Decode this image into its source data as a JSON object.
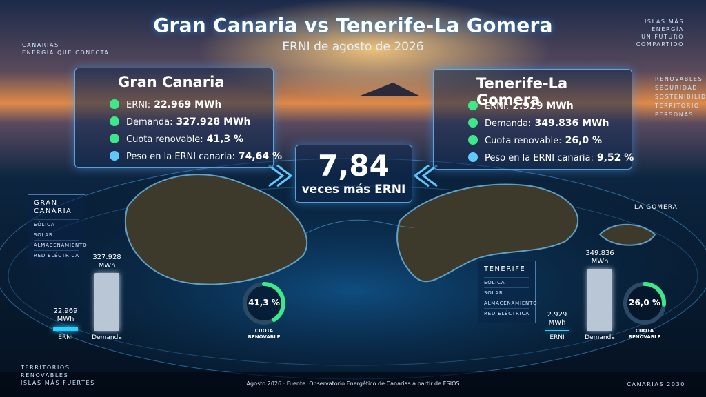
{
  "header": {
    "title": "Gran Canaria vs Tenerife-La Gomera",
    "subtitle": "ERNI de agosto de 2026"
  },
  "brand": "CANARIAS\nENERGÍA QUE CONECTA",
  "top_right": "ISLAS MÁS\nENERGÍA\nUN FUTURO\nCOMPARTIDO",
  "right_menu": "RENOVABLES\nSEGURIDAD\nSOSTENIBILIDAD\nTERRITORIO\nPERSONAS",
  "bottom_left": "TERRITORIOS\nRENOVABLES\nISLAS MÁS FUERTES",
  "bottom_right": "CANARIAS 2030",
  "footer": "Agosto 2026 · Fuente: Observatorio Energético de Canarias a partir de ESIOS",
  "comparison": {
    "value": "7,84",
    "label": "veces más ERNI"
  },
  "la_gomera": "LA GOMERA",
  "islands": [
    {
      "name": "Gran Canaria",
      "stats": [
        {
          "label": "ERNI:",
          "value": "22.969 MWh"
        },
        {
          "label": "Demanda:",
          "value": "327.928 MWh"
        },
        {
          "label": "Cuota renovable:",
          "value": "41,3 %"
        },
        {
          "label": "Peso en la ERNI canaria:",
          "value": "74,64 %"
        }
      ],
      "panel": {
        "title": "GRAN\nCANARIA",
        "items": [
          "EÓLICA",
          "SOLAR",
          "ALMACENAMIENTO",
          "RED ELÉCTRICA"
        ]
      },
      "bars": {
        "categories": [
          "ERNI",
          "Demanda"
        ],
        "values": [
          22969,
          327928
        ],
        "value_labels": [
          "22.969\nMWh",
          "327.928\nMWh"
        ],
        "colors": [
          "#2ad0ff",
          "#b8c6d6"
        ]
      },
      "donut": {
        "value": 41.3,
        "value_label": "41,3 %",
        "caption": "CUOTA\nRENOVABLE",
        "color": "#3ee88a"
      }
    },
    {
      "name": "Tenerife-La Gomera",
      "stats": [
        {
          "label": "ERNI:",
          "value": "2.929 MWh"
        },
        {
          "label": "Demanda:",
          "value": "349.836 MWh"
        },
        {
          "label": "Cuota renovable:",
          "value": "26,0 %"
        },
        {
          "label": "Peso en la ERNI canaria:",
          "value": "9,52 %"
        }
      ],
      "panel": {
        "title": "TENERIFE",
        "items": [
          "EÓLICA",
          "SOLAR",
          "ALMACENAMIENTO",
          "RED ELÉCTRICA"
        ]
      },
      "bars": {
        "categories": [
          "ERNI",
          "Demanda"
        ],
        "values": [
          2929,
          349836
        ],
        "value_labels": [
          "2.929\nMWh",
          "349.836\nMWh"
        ],
        "colors": [
          "#2ad0ff",
          "#b8c6d6"
        ]
      },
      "donut": {
        "value": 26.0,
        "value_label": "26,0 %",
        "caption": "CUOTA\nRENOVABLE",
        "color": "#3ee88a"
      }
    }
  ]
}
